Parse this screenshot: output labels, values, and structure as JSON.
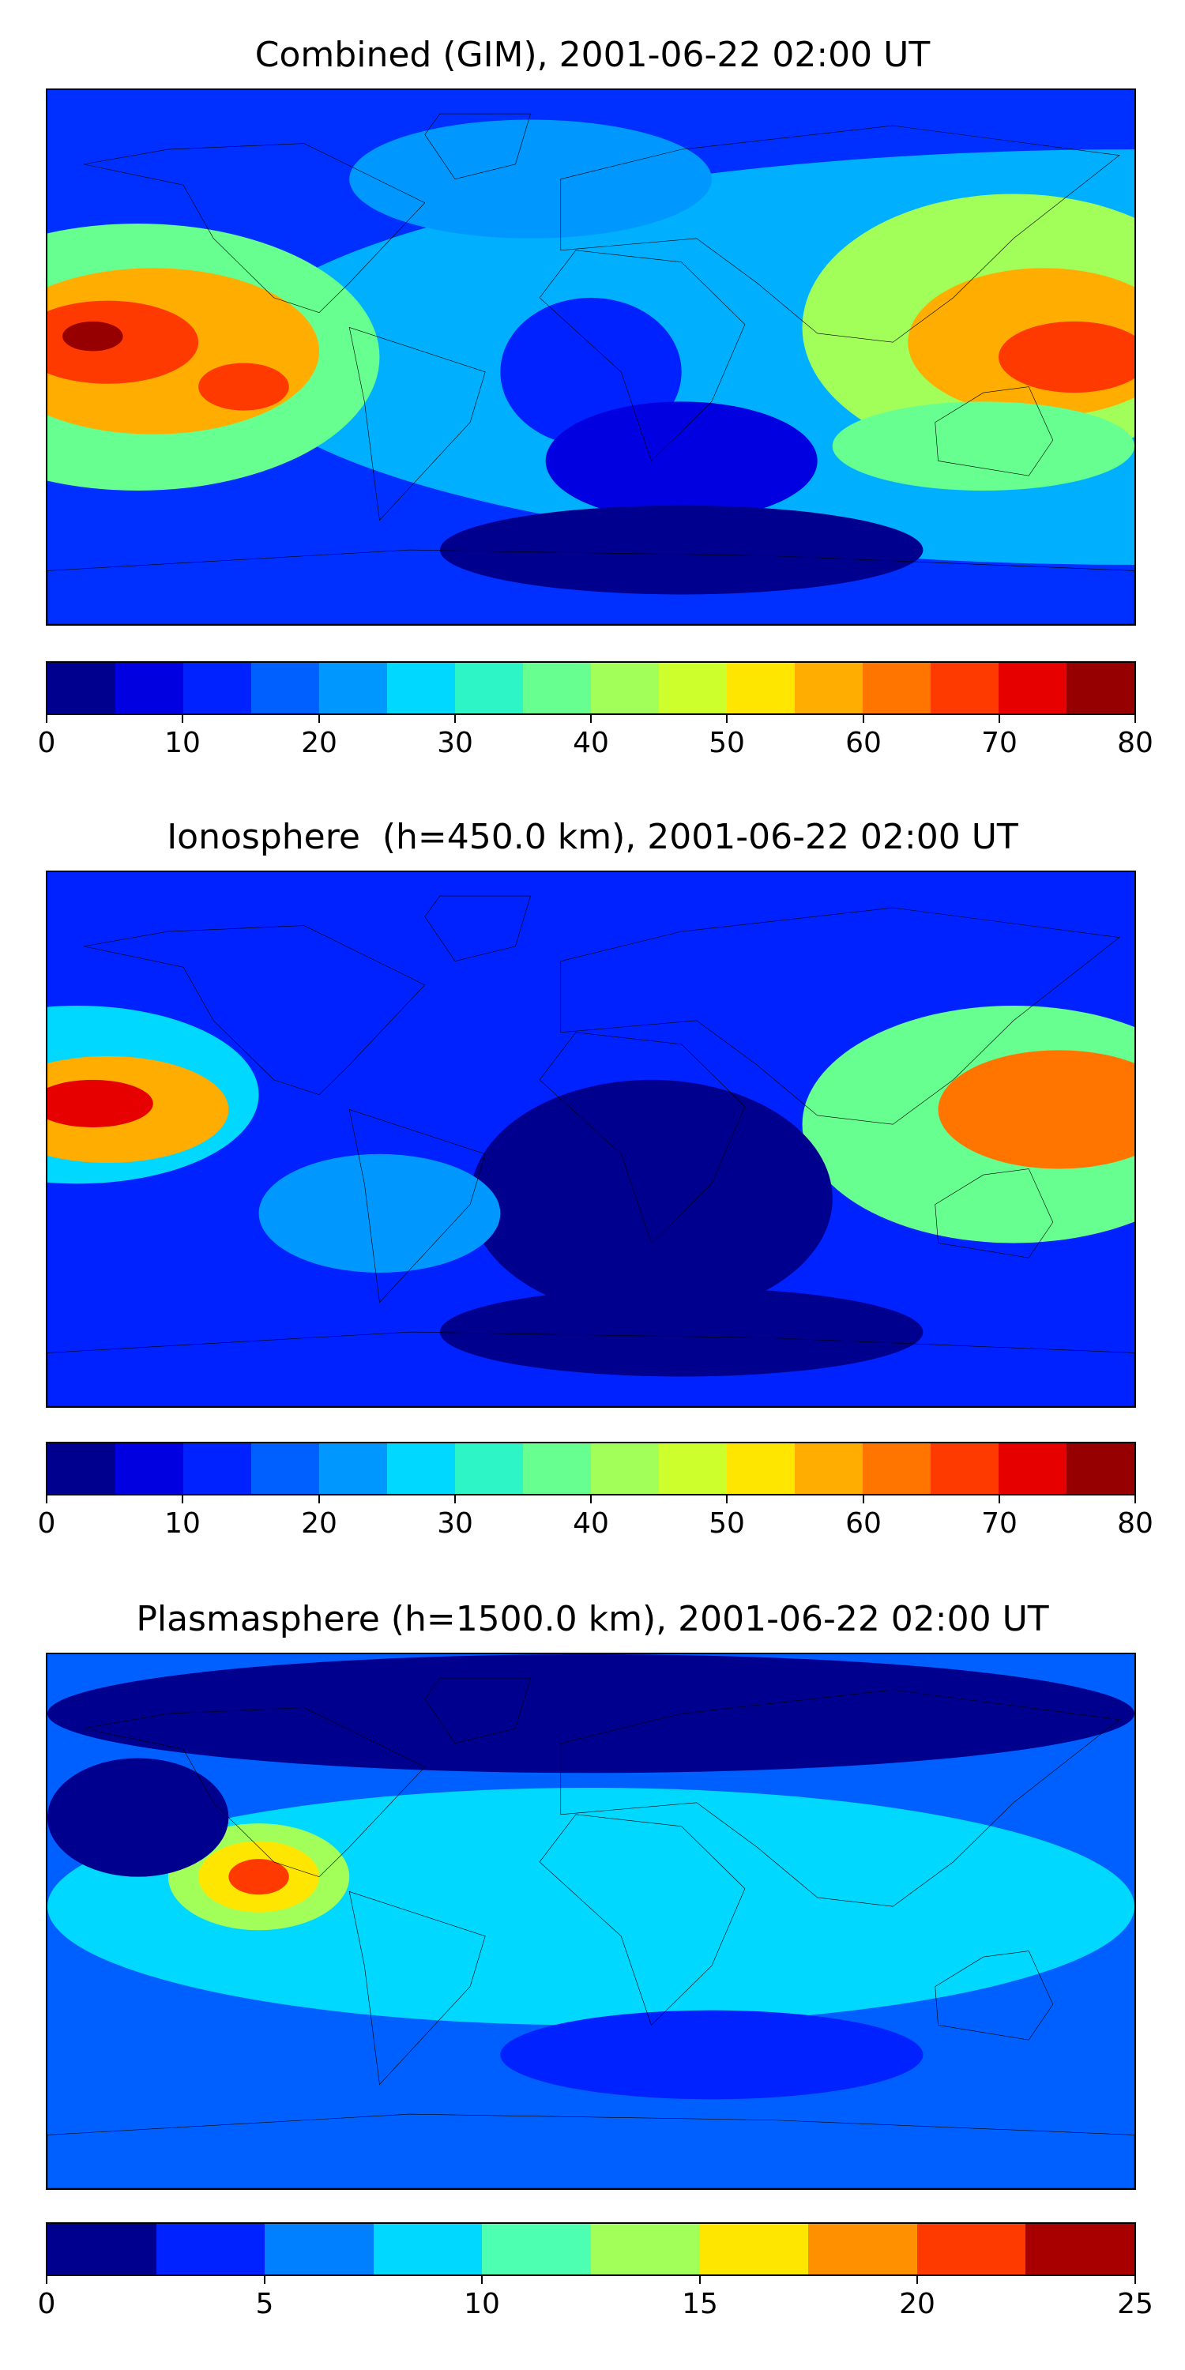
{
  "panels": [
    {
      "title": "Combined (GIM), 2001-06-22 02:00 UT",
      "colorbar": {
        "min": 0,
        "max": 80,
        "step": 5,
        "tick_labels": [
          "0",
          "10",
          "20",
          "30",
          "40",
          "50",
          "60",
          "70",
          "80"
        ],
        "colors": [
          "#00008f",
          "#0000e0",
          "#0022ff",
          "#0060ff",
          "#0098ff",
          "#00d8ff",
          "#2ef5c5",
          "#66ff90",
          "#a2ff5a",
          "#ccff2c",
          "#ffe600",
          "#ffad00",
          "#ff7500",
          "#ff3a00",
          "#e60000",
          "#960000"
        ]
      },
      "field": {
        "background": "#0030ff",
        "blobs": [
          {
            "lon": 180,
            "lat": 0,
            "rx": 300,
            "ry": 70,
            "color": "#00b0ff"
          },
          {
            "lon": -150,
            "lat": 0,
            "rx": 80,
            "ry": 45,
            "color": "#66ff90"
          },
          {
            "lon": -145,
            "lat": 2,
            "rx": 55,
            "ry": 28,
            "color": "#ffad00"
          },
          {
            "lon": -160,
            "lat": 5,
            "rx": 30,
            "ry": 14,
            "color": "#ff3a00"
          },
          {
            "lon": -165,
            "lat": 7,
            "rx": 10,
            "ry": 5,
            "color": "#960000"
          },
          {
            "lon": -115,
            "lat": -10,
            "rx": 15,
            "ry": 8,
            "color": "#ff3a00"
          },
          {
            "lon": 140,
            "lat": 10,
            "rx": 70,
            "ry": 45,
            "color": "#a2ff5a"
          },
          {
            "lon": 150,
            "lat": 5,
            "rx": 45,
            "ry": 25,
            "color": "#ffad00"
          },
          {
            "lon": 160,
            "lat": 0,
            "rx": 25,
            "ry": 12,
            "color": "#ff3a00"
          },
          {
            "lon": 0,
            "lat": -5,
            "rx": 30,
            "ry": 25,
            "color": "#0022ff"
          },
          {
            "lon": 30,
            "lat": -35,
            "rx": 45,
            "ry": 20,
            "color": "#0000e0"
          },
          {
            "lon": 30,
            "lat": -65,
            "rx": 80,
            "ry": 15,
            "color": "#00008f"
          },
          {
            "lon": -20,
            "lat": 60,
            "rx": 60,
            "ry": 20,
            "color": "#0098ff"
          },
          {
            "lon": 130,
            "lat": -30,
            "rx": 50,
            "ry": 15,
            "color": "#66ff90"
          }
        ]
      }
    },
    {
      "title": "Ionosphere  (h=450.0 km), 2001-06-22 02:00 UT",
      "colorbar": {
        "min": 0,
        "max": 80,
        "step": 5,
        "tick_labels": [
          "0",
          "10",
          "20",
          "30",
          "40",
          "50",
          "60",
          "70",
          "80"
        ],
        "colors": [
          "#00008f",
          "#0000e0",
          "#0022ff",
          "#0060ff",
          "#0098ff",
          "#00d8ff",
          "#2ef5c5",
          "#66ff90",
          "#a2ff5a",
          "#ccff2c",
          "#ffe600",
          "#ffad00",
          "#ff7500",
          "#ff3a00",
          "#e60000",
          "#960000"
        ]
      },
      "field": {
        "background": "#0022ff",
        "blobs": [
          {
            "lon": -170,
            "lat": 15,
            "rx": 60,
            "ry": 30,
            "color": "#00d8ff"
          },
          {
            "lon": -160,
            "lat": 10,
            "rx": 40,
            "ry": 18,
            "color": "#ffad00"
          },
          {
            "lon": -165,
            "lat": 12,
            "rx": 20,
            "ry": 8,
            "color": "#e60000"
          },
          {
            "lon": 140,
            "lat": 5,
            "rx": 70,
            "ry": 40,
            "color": "#66ff90"
          },
          {
            "lon": 155,
            "lat": 10,
            "rx": 40,
            "ry": 20,
            "color": "#ff7500"
          },
          {
            "lon": 20,
            "lat": -20,
            "rx": 60,
            "ry": 40,
            "color": "#00008f"
          },
          {
            "lon": -70,
            "lat": -25,
            "rx": 40,
            "ry": 20,
            "color": "#0098ff"
          },
          {
            "lon": 30,
            "lat": -65,
            "rx": 80,
            "ry": 15,
            "color": "#00008f"
          }
        ]
      }
    },
    {
      "title": "Plasmasphere (h=1500.0 km), 2001-06-22 02:00 UT",
      "colorbar": {
        "min": 0,
        "max": 25,
        "step": 2.5,
        "tick_labels": [
          "0",
          "5",
          "10",
          "15",
          "20",
          "25"
        ],
        "colors": [
          "#00008f",
          "#0022ff",
          "#0080ff",
          "#00d8ff",
          "#4dffb0",
          "#a2ff5a",
          "#ffe600",
          "#ff9000",
          "#ff3a00",
          "#a80000"
        ]
      },
      "field": {
        "background": "#0060ff",
        "blobs": [
          {
            "lon": 0,
            "lat": 5,
            "rx": 180,
            "ry": 40,
            "color": "#00d8ff"
          },
          {
            "lon": -110,
            "lat": 15,
            "rx": 30,
            "ry": 18,
            "color": "#a2ff5a"
          },
          {
            "lon": -110,
            "lat": 15,
            "rx": 20,
            "ry": 12,
            "color": "#ffe600"
          },
          {
            "lon": -110,
            "lat": 15,
            "rx": 10,
            "ry": 6,
            "color": "#ff3a00"
          },
          {
            "lon": 0,
            "lat": 70,
            "rx": 180,
            "ry": 20,
            "color": "#00008f"
          },
          {
            "lon": 40,
            "lat": -45,
            "rx": 70,
            "ry": 15,
            "color": "#0022ff"
          },
          {
            "lon": -150,
            "lat": 35,
            "rx": 30,
            "ry": 20,
            "color": "#00008f"
          }
        ]
      }
    }
  ],
  "map": {
    "coastline_color": "#000000",
    "continents": [
      {
        "name": "North America",
        "points": [
          [
            -168,
            65
          ],
          [
            -140,
            70
          ],
          [
            -95,
            72
          ],
          [
            -75,
            62
          ],
          [
            -55,
            52
          ],
          [
            -80,
            25
          ],
          [
            -90,
            15
          ],
          [
            -105,
            20
          ],
          [
            -125,
            40
          ],
          [
            -135,
            58
          ]
        ]
      },
      {
        "name": "South America",
        "points": [
          [
            -80,
            10
          ],
          [
            -35,
            -5
          ],
          [
            -40,
            -22
          ],
          [
            -70,
            -55
          ],
          [
            -75,
            -15
          ]
        ]
      },
      {
        "name": "Greenland",
        "points": [
          [
            -50,
            82
          ],
          [
            -20,
            82
          ],
          [
            -25,
            65
          ],
          [
            -45,
            60
          ],
          [
            -55,
            75
          ]
        ]
      },
      {
        "name": "Africa",
        "points": [
          [
            -17,
            20
          ],
          [
            -5,
            36
          ],
          [
            30,
            32
          ],
          [
            51,
            11
          ],
          [
            40,
            -15
          ],
          [
            20,
            -35
          ],
          [
            10,
            -5
          ]
        ]
      },
      {
        "name": "Eurasia",
        "points": [
          [
            -10,
            36
          ],
          [
            -10,
            60
          ],
          [
            30,
            70
          ],
          [
            100,
            78
          ],
          [
            175,
            68
          ],
          [
            140,
            40
          ],
          [
            120,
            20
          ],
          [
            100,
            5
          ],
          [
            75,
            8
          ],
          [
            55,
            25
          ],
          [
            35,
            40
          ]
        ]
      },
      {
        "name": "Australia",
        "points": [
          [
            114,
            -22
          ],
          [
            130,
            -12
          ],
          [
            145,
            -10
          ],
          [
            153,
            -28
          ],
          [
            145,
            -40
          ],
          [
            115,
            -35
          ]
        ]
      },
      {
        "name": "Antarctica",
        "points": [
          [
            -180,
            -72
          ],
          [
            -60,
            -65
          ],
          [
            60,
            -67
          ],
          [
            180,
            -72
          ],
          [
            180,
            -90
          ],
          [
            -180,
            -90
          ]
        ]
      }
    ]
  }
}
